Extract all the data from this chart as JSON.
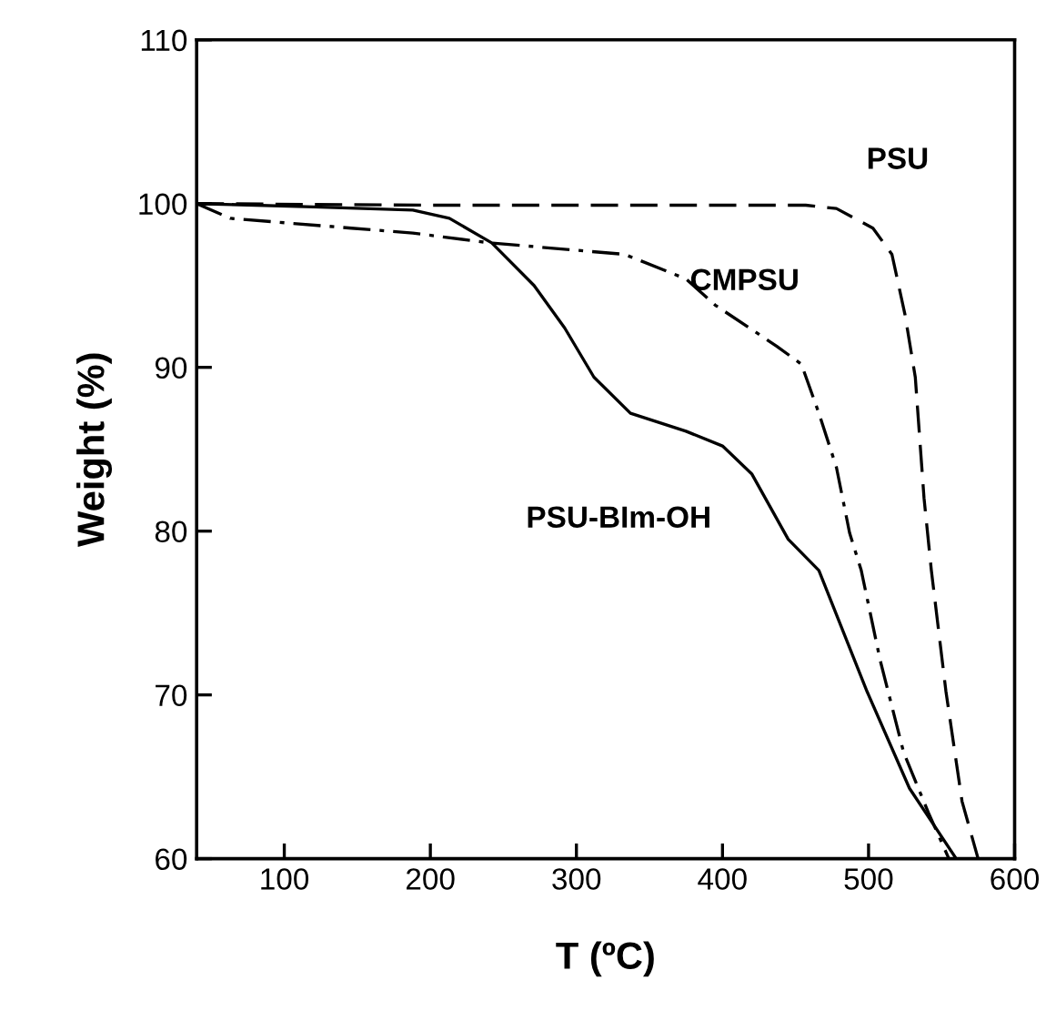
{
  "chart_data": {
    "type": "line",
    "xlabel": "T (ºC)",
    "ylabel": "Weight (%)",
    "xlim": [
      40,
      600
    ],
    "xticks": [
      100,
      200,
      300,
      400,
      500,
      600
    ],
    "ylim": [
      60,
      110
    ],
    "yticks": [
      60,
      70,
      80,
      90,
      100,
      110
    ],
    "grid": false,
    "legend": false,
    "marker": "none",
    "series": [
      {
        "name": "PSU",
        "color": "#000000",
        "line_style": "dashed",
        "x": [
          40,
          200,
          300,
          400,
          457,
          478,
          503,
          516,
          525,
          532,
          538,
          543,
          553,
          564,
          575
        ],
        "values": [
          100,
          99.9,
          99.9,
          99.9,
          99.9,
          99.7,
          98.5,
          96.9,
          93.2,
          89.4,
          82,
          77.6,
          70.2,
          63.5,
          60
        ]
      },
      {
        "name": "CMPSU",
        "color": "#000000",
        "line_style": "dashdot",
        "x": [
          40,
          63,
          146,
          188,
          241,
          333,
          375,
          395,
          437,
          454,
          466,
          478,
          487,
          495,
          508,
          524,
          541,
          555
        ],
        "values": [
          100,
          99.1,
          98.5,
          98.2,
          97.6,
          96.9,
          95.4,
          93.8,
          91.3,
          90.2,
          87.2,
          83.9,
          79.9,
          77.6,
          72.1,
          66.5,
          62.8,
          60
        ]
      },
      {
        "name": "PSU-BIm-OH",
        "color": "#000000",
        "line_style": "solid",
        "x": [
          40,
          120,
          188,
          213,
          242,
          271,
          292,
          312,
          337,
          375,
          400,
          420,
          445,
          466,
          499,
          528,
          560
        ],
        "values": [
          100,
          99.8,
          99.6,
          99.1,
          97.6,
          95.0,
          92.4,
          89.4,
          87.2,
          86.1,
          85.2,
          83.5,
          79.5,
          77.6,
          70.2,
          64.3,
          60
        ]
      }
    ]
  }
}
